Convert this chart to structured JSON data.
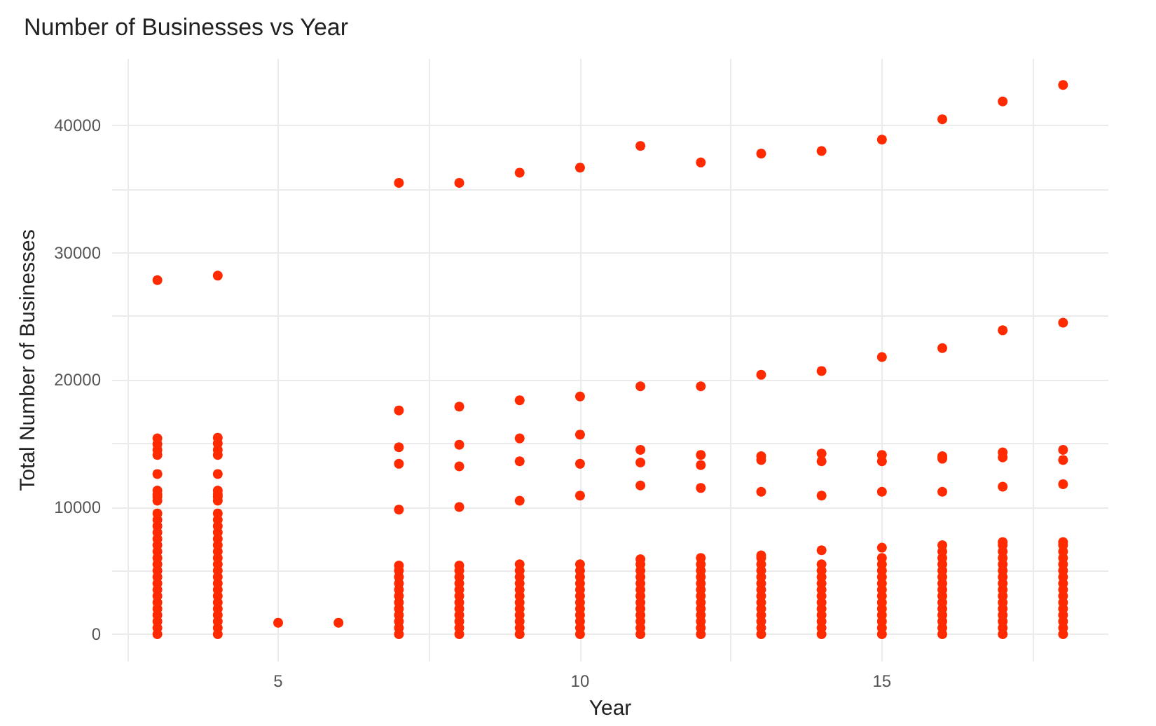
{
  "chart_data": {
    "type": "scatter",
    "title": "Number of Businesses vs Year",
    "xlabel": "Year",
    "ylabel": "Total Number of Businesses",
    "color": "#ff2a00",
    "marker": "circle",
    "grid": true,
    "xlim": [
      2.25,
      18.75
    ],
    "xticks": [
      {
        "value": 2.5,
        "label": null
      },
      5,
      {
        "value": 7.5,
        "label": null
      },
      10,
      {
        "value": 12.5,
        "label": null
      },
      15,
      {
        "value": 17.5,
        "label": null
      }
    ],
    "ylim": [
      -2150,
      45250
    ],
    "yticks": [
      0,
      {
        "value": 5000,
        "label": null
      },
      10000,
      {
        "value": 15000,
        "label": null
      },
      20000,
      {
        "value": 25000,
        "label": null
      },
      30000,
      {
        "value": 35000,
        "label": null
      },
      40000
    ],
    "x": [
      3,
      3,
      3,
      3,
      3,
      3,
      3,
      3,
      3,
      3,
      3,
      3,
      3,
      3,
      3,
      3,
      3,
      3,
      3,
      3,
      3,
      3,
      3,
      3,
      3,
      3,
      3,
      3,
      3,
      3,
      4,
      4,
      4,
      4,
      4,
      4,
      4,
      4,
      4,
      4,
      4,
      4,
      4,
      4,
      4,
      4,
      4,
      4,
      4,
      4,
      4,
      4,
      4,
      4,
      4,
      4,
      4,
      4,
      4,
      4,
      5,
      6,
      7,
      7,
      7,
      7,
      7,
      7,
      7,
      7,
      7,
      7,
      7,
      7,
      7,
      7,
      7,
      7,
      7,
      8,
      8,
      8,
      8,
      8,
      8,
      8,
      8,
      8,
      8,
      8,
      8,
      8,
      8,
      8,
      8,
      8,
      9,
      9,
      9,
      9,
      9,
      9,
      9,
      9,
      9,
      9,
      9,
      9,
      9,
      9,
      9,
      9,
      9,
      10,
      10,
      10,
      10,
      10,
      10,
      10,
      10,
      10,
      10,
      10,
      10,
      10,
      10,
      10,
      10,
      10,
      11,
      11,
      11,
      11,
      11,
      11,
      11,
      11,
      11,
      11,
      11,
      11,
      11,
      11,
      11,
      11,
      11,
      11,
      12,
      12,
      12,
      12,
      12,
      12,
      12,
      12,
      12,
      12,
      12,
      12,
      12,
      12,
      12,
      12,
      12,
      12,
      13,
      13,
      13,
      13,
      13,
      13,
      13,
      13,
      13,
      13,
      13,
      13,
      13,
      13,
      13,
      13,
      13,
      13,
      13,
      14,
      14,
      14,
      14,
      14,
      14,
      14,
      14,
      14,
      14,
      14,
      14,
      14,
      14,
      14,
      14,
      14,
      14,
      15,
      15,
      15,
      15,
      15,
      15,
      15,
      15,
      15,
      15,
      15,
      15,
      15,
      15,
      15,
      15,
      15,
      15,
      15,
      16,
      16,
      16,
      16,
      16,
      16,
      16,
      16,
      16,
      16,
      16,
      16,
      16,
      16,
      16,
      16,
      16,
      16,
      16,
      16,
      17,
      17,
      17,
      17,
      17,
      17,
      17,
      17,
      17,
      17,
      17,
      17,
      17,
      17,
      17,
      17,
      17,
      17,
      17,
      17,
      17,
      18,
      18,
      18,
      18,
      18,
      18,
      18,
      18,
      18,
      18,
      18,
      18,
      18,
      18,
      18,
      18,
      18,
      18,
      18,
      18,
      18
    ],
    "values": [
      0,
      500,
      1000,
      1500,
      2000,
      2500,
      3000,
      3500,
      4000,
      4500,
      5000,
      5500,
      6000,
      6500,
      7000,
      7500,
      8000,
      8500,
      9000,
      9500,
      10500,
      10800,
      11000,
      11300,
      12600,
      14100,
      14500,
      14950,
      15400,
      27850,
      0,
      500,
      1000,
      1500,
      2000,
      2500,
      3000,
      3500,
      4000,
      4500,
      5000,
      5500,
      6000,
      6500,
      7000,
      7500,
      8000,
      8500,
      9000,
      9500,
      10500,
      10800,
      11000,
      11300,
      12600,
      14100,
      14500,
      15000,
      15450,
      28200,
      900,
      900,
      0,
      500,
      1000,
      1500,
      2000,
      2500,
      3000,
      3500,
      4000,
      4500,
      5000,
      5400,
      9800,
      13400,
      14700,
      17600,
      35500,
      0,
      500,
      1000,
      1500,
      2000,
      2500,
      3000,
      3500,
      4000,
      4500,
      5000,
      5400,
      10000,
      13200,
      14900,
      17900,
      35500,
      0,
      500,
      1000,
      1500,
      2000,
      2500,
      3000,
      3500,
      4000,
      4500,
      5000,
      5500,
      10500,
      13600,
      15400,
      18400,
      36300,
      0,
      500,
      1000,
      1500,
      2000,
      2500,
      3000,
      3500,
      4000,
      4500,
      5000,
      5500,
      10900,
      13400,
      15700,
      18700,
      36700,
      0,
      500,
      1000,
      1500,
      2000,
      2500,
      3000,
      3500,
      4000,
      4500,
      5000,
      5500,
      5900,
      11700,
      13500,
      14500,
      19500,
      38400,
      0,
      500,
      1000,
      1500,
      2000,
      2500,
      3000,
      3500,
      4000,
      4500,
      5000,
      5500,
      6000,
      11500,
      13300,
      14100,
      19500,
      37100,
      0,
      500,
      1000,
      1500,
      2000,
      2500,
      3000,
      3500,
      4000,
      4500,
      5000,
      5500,
      6000,
      6200,
      11200,
      13700,
      14000,
      20400,
      37800,
      0,
      500,
      1000,
      1500,
      2000,
      2500,
      3000,
      3500,
      4000,
      4500,
      5000,
      5500,
      6600,
      10900,
      13600,
      14200,
      20700,
      38000,
      0,
      500,
      1000,
      1500,
      2000,
      2500,
      3000,
      3500,
      4000,
      4500,
      5000,
      5500,
      6000,
      6800,
      11200,
      13600,
      14100,
      21800,
      38900,
      0,
      500,
      1000,
      1500,
      2000,
      2500,
      3000,
      3500,
      4000,
      4500,
      5000,
      5500,
      6000,
      6500,
      7000,
      11200,
      13800,
      14000,
      22500,
      40500,
      0,
      500,
      1000,
      1500,
      2000,
      2500,
      3000,
      3500,
      4000,
      4500,
      5000,
      5500,
      6000,
      6500,
      7000,
      7250,
      11600,
      13900,
      14300,
      23900,
      41900,
      0,
      500,
      1000,
      1500,
      2000,
      2500,
      3000,
      3500,
      4000,
      4500,
      5000,
      5500,
      6000,
      6500,
      7000,
      7250,
      11800,
      13700,
      14500,
      24500,
      43200
    ]
  }
}
